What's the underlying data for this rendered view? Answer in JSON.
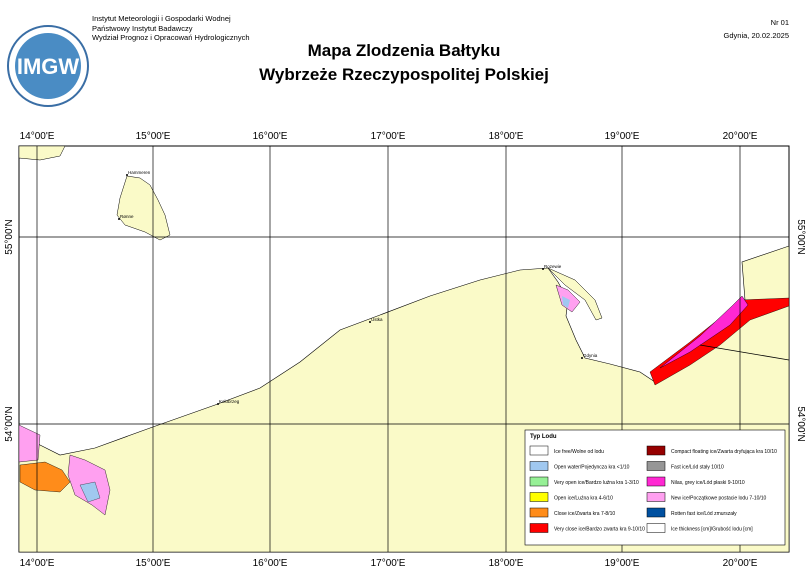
{
  "header": {
    "institute": [
      "Instytut Meteorologii i Gospodarki Wodnej",
      "Państwowy Instytut Badawczy",
      "Wydział Prognoz i Opracowań Hydrologicznych"
    ],
    "logo": "IMGW",
    "number": "Nr 01",
    "place_date": "Gdynia, 20.02.2025",
    "title": "Mapa Zlodzenia Bałtyku",
    "subtitle": "Wybrzeże Rzeczypospolitej Polskiej"
  },
  "map": {
    "longitudes": [
      "14°00'E",
      "15°00'E",
      "16°00'E",
      "17°00'E",
      "18°00'E",
      "19°00'E",
      "20°00'E"
    ],
    "latitudes": [
      "55°00'N",
      "54°00'N"
    ],
    "places": [
      "Hammeren",
      "Rønne",
      "Kołobrzeg",
      "Ustka",
      "Rozewie",
      "Gdynia"
    ]
  },
  "legend": {
    "title": "Typ Lodu",
    "items": [
      {
        "label": "Ice free/Wolne od lodu",
        "color": "#ffffff"
      },
      {
        "label": "Open water/Pojedyncza kra <1/10",
        "color": "#a0c8f0"
      },
      {
        "label": "Very open ice/Bardzo luźna kra 1-3/10",
        "color": "#96f096"
      },
      {
        "label": "Open ice/Luźna kra 4-6/10",
        "color": "#ffff00"
      },
      {
        "label": "Close ice/Zwarta kra 7-8/10",
        "color": "#ff8c1a"
      },
      {
        "label": "Very close ice/Bardzo zwarta kra 9-10/10",
        "color": "#ff0000"
      },
      {
        "label": "Compact floating ice/Zwarta dryfująca kra 10/10",
        "color": "#960000"
      },
      {
        "label": "Fast ice/Lód stały 10/10",
        "color": "#969696"
      },
      {
        "label": "Nilas, grey ice/Lód płaski 9-10/10",
        "color": "#ff28d2"
      },
      {
        "label": "New ice/Początkowe postacie lodu 7-10/10",
        "color": "#ffa0f0"
      },
      {
        "label": "Rotten fast ice/Lód zmurszały",
        "color": "#0050a0"
      },
      {
        "label": "Ice thickness [cm]/Grubość lodu [cm]",
        "color": "#ffffff"
      }
    ]
  }
}
